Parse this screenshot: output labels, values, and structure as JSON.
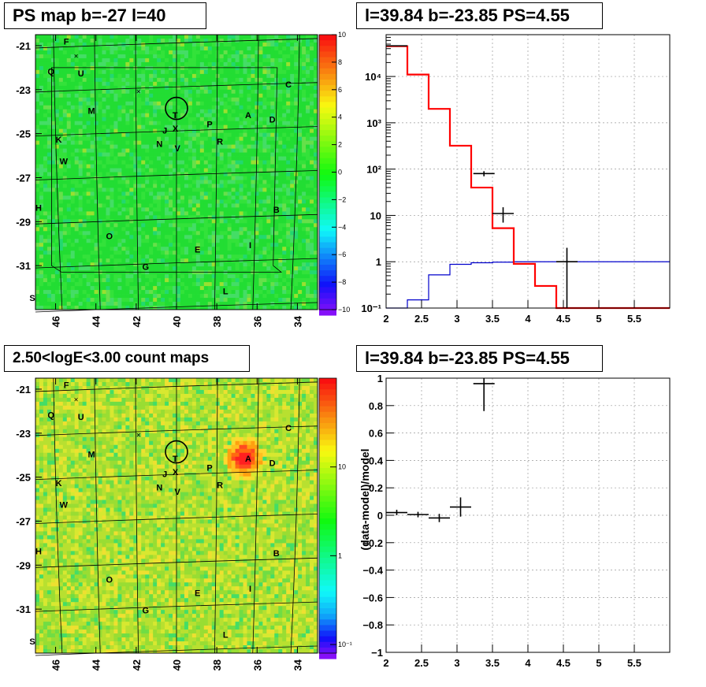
{
  "panels": {
    "map_top": {
      "title": "PS map b=-27 l=40",
      "lon_ticks": [
        "46",
        "44",
        "42",
        "40",
        "38",
        "36",
        "34"
      ],
      "lat_ticks": [
        "-21",
        "-23",
        "-25",
        "-27",
        "-29",
        "-31"
      ],
      "colorbar_ticks": [
        "10",
        "8",
        "6",
        "4",
        "2",
        "0",
        "−2",
        "−4",
        "−6",
        "−8",
        "−10"
      ]
    },
    "map_bottom": {
      "title": "2.50<logE<3.00 count maps",
      "lon_ticks": [
        "46",
        "44",
        "42",
        "40",
        "38",
        "36",
        "34"
      ],
      "lat_ticks": [
        "-21",
        "-23",
        "-25",
        "-27",
        "-29",
        "-31"
      ],
      "colorbar_ticks": [
        "10",
        "1",
        "10⁻¹"
      ]
    },
    "spectrum": {
      "title": "l=39.84 b=-23.85 PS=4.55"
    },
    "residual": {
      "title": "l=39.84 b=-23.85 PS=4.55"
    }
  },
  "source_labels": [
    "F",
    "Q",
    "U",
    "C",
    "M",
    "A",
    "D",
    "P",
    "J",
    "X",
    "N",
    "V",
    "R",
    "K",
    "W",
    "H",
    "B",
    "O",
    "E",
    "I",
    "G",
    "L",
    "S",
    "T"
  ],
  "colors": {
    "model": "#ff0000",
    "background": "#0000cc",
    "data": "#000000",
    "map_base": "#22dd33",
    "hotspot": "#ff2222"
  },
  "chart_data": [
    {
      "type": "heatmap",
      "title": "PS map b=-27 l=40",
      "xlim": [
        47,
        33
      ],
      "ylim": [
        -33,
        -20.5
      ],
      "x_ticks": [
        46,
        44,
        42,
        40,
        38,
        36,
        34
      ],
      "y_ticks": [
        -21,
        -23,
        -25,
        -27,
        -29,
        -31
      ],
      "colorscale_range": [
        -10,
        10
      ],
      "colorscale_ticks": [
        10,
        8,
        6,
        4,
        2,
        0,
        -2,
        -4,
        -6,
        -8,
        -10
      ]
    },
    {
      "type": "line",
      "title": "l=39.84 b=-23.85 PS=4.55",
      "log_y": true,
      "xlim": [
        2,
        6
      ],
      "ylim": [
        0.1,
        80000
      ],
      "x_ticks": [
        2,
        2.5,
        3,
        3.5,
        4,
        4.5,
        5,
        5.5
      ],
      "y_ticks": [
        "10⁻¹",
        "1",
        "10",
        "10²",
        "10³",
        "10⁴"
      ],
      "grid": true,
      "series": [
        {
          "step_edges": [
            2.0,
            2.3,
            2.6,
            2.9,
            3.2,
            3.5,
            3.8,
            4.1,
            4.4,
            6.0
          ],
          "values": [
            45000,
            11000,
            2000,
            320,
            40,
            5.3,
            0.9,
            0.3,
            0.1
          ]
        },
        {
          "step_edges": [
            2.0,
            2.3,
            2.6,
            2.9,
            3.2,
            3.5,
            3.8,
            6.0
          ],
          "values": [
            0.1,
            0.15,
            0.52,
            0.88,
            0.95,
            0.98,
            1.0
          ]
        },
        {
          "points": [
            {
              "x": 2.15,
              "y": 46000,
              "xerr": 0.15,
              "ylo": 45000,
              "yhi": 47000
            },
            {
              "x": 3.38,
              "y": 80,
              "xerr": 0.15,
              "ylo": 70,
              "yhi": 90
            },
            {
              "x": 3.65,
              "y": 11,
              "xerr": 0.15,
              "ylo": 7,
              "yhi": 15
            },
            {
              "x": 4.55,
              "y": 1.0,
              "xerr": 0.15,
              "ylo": 0.1,
              "yhi": 2.0
            }
          ]
        }
      ]
    },
    {
      "type": "heatmap",
      "title": "2.50<logE<3.00 count maps",
      "xlim": [
        47,
        33
      ],
      "ylim": [
        -33,
        -20.5
      ],
      "x_ticks": [
        46,
        44,
        42,
        40,
        38,
        36,
        34
      ],
      "y_ticks": [
        -21,
        -23,
        -25,
        -27,
        -29,
        -31
      ],
      "colorscale": "log",
      "colorscale_range": [
        0.08,
        100
      ],
      "colorscale_ticks": [
        "10",
        "1",
        "10⁻¹"
      ]
    },
    {
      "type": "scatter",
      "title": "l=39.84 b=-23.85 PS=4.55",
      "ylabel": "(data-model)/model",
      "xlim": [
        2,
        6
      ],
      "ylim": [
        -1,
        1
      ],
      "x_ticks": [
        2,
        2.5,
        3,
        3.5,
        4,
        4.5,
        5,
        5.5
      ],
      "y_ticks": [
        1,
        0.8,
        0.6,
        0.4,
        0.2,
        0,
        -0.2,
        -0.4,
        -0.6,
        -0.8,
        -1
      ],
      "grid": true,
      "points": [
        {
          "x": 2.15,
          "y": 0.02,
          "xerr": 0.15,
          "yerr": 0.02
        },
        {
          "x": 2.45,
          "y": 0.005,
          "xerr": 0.15,
          "yerr": 0.02
        },
        {
          "x": 2.75,
          "y": -0.02,
          "xerr": 0.15,
          "yerr": 0.03
        },
        {
          "x": 3.05,
          "y": 0.06,
          "xerr": 0.15,
          "yerr": 0.07
        },
        {
          "x": 3.38,
          "y": 0.96,
          "xerr": 0.15,
          "yerr": 0.2
        }
      ]
    }
  ]
}
